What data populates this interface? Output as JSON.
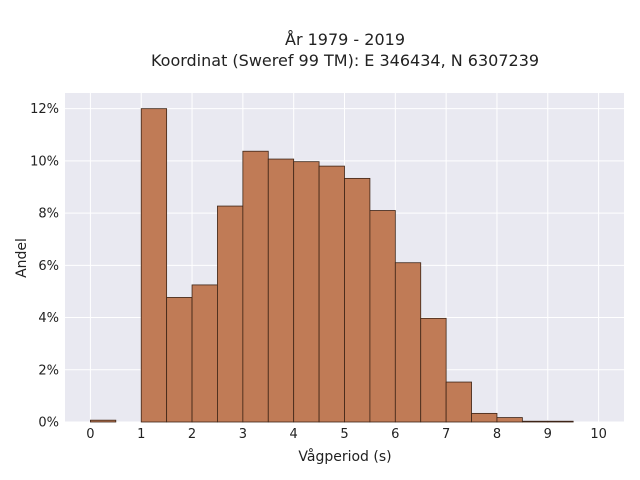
{
  "chart_data": {
    "type": "bar",
    "title_lines": [
      "År 1979 - 2019",
      "Koordinat (Sweref 99 TM): E 346434, N 6307239"
    ],
    "xlabel": "Vågperiod (s)",
    "ylabel": "Andel",
    "x_ticks": [
      "0",
      "1",
      "2",
      "3",
      "4",
      "5",
      "6",
      "7",
      "8",
      "9",
      "10"
    ],
    "y_ticks": [
      "0%",
      "2%",
      "4%",
      "6%",
      "8%",
      "10%",
      "12%"
    ],
    "xlim": [
      -0.5,
      10.5
    ],
    "ylim": [
      0,
      12.6
    ],
    "bin_width": 0.5,
    "bins": [
      {
        "x0": 0.0,
        "value": 0.07
      },
      {
        "x0": 0.5,
        "value": 0.0
      },
      {
        "x0": 1.0,
        "value": 12.0
      },
      {
        "x0": 1.5,
        "value": 4.77
      },
      {
        "x0": 2.0,
        "value": 5.25
      },
      {
        "x0": 2.5,
        "value": 8.27
      },
      {
        "x0": 3.0,
        "value": 10.37
      },
      {
        "x0": 3.5,
        "value": 10.07
      },
      {
        "x0": 4.0,
        "value": 9.97
      },
      {
        "x0": 4.5,
        "value": 9.8
      },
      {
        "x0": 5.0,
        "value": 9.33
      },
      {
        "x0": 5.5,
        "value": 8.1
      },
      {
        "x0": 6.0,
        "value": 6.1
      },
      {
        "x0": 6.5,
        "value": 3.97
      },
      {
        "x0": 7.0,
        "value": 1.53
      },
      {
        "x0": 7.5,
        "value": 0.33
      },
      {
        "x0": 8.0,
        "value": 0.17
      },
      {
        "x0": 8.5,
        "value": 0.03
      },
      {
        "x0": 9.0,
        "value": 0.03
      }
    ],
    "grid": true,
    "colors": {
      "bar_fill": "#c07b56",
      "bar_stroke": "#3d2416",
      "plot_bg": "#e9e9f1",
      "grid": "#ffffff"
    }
  }
}
